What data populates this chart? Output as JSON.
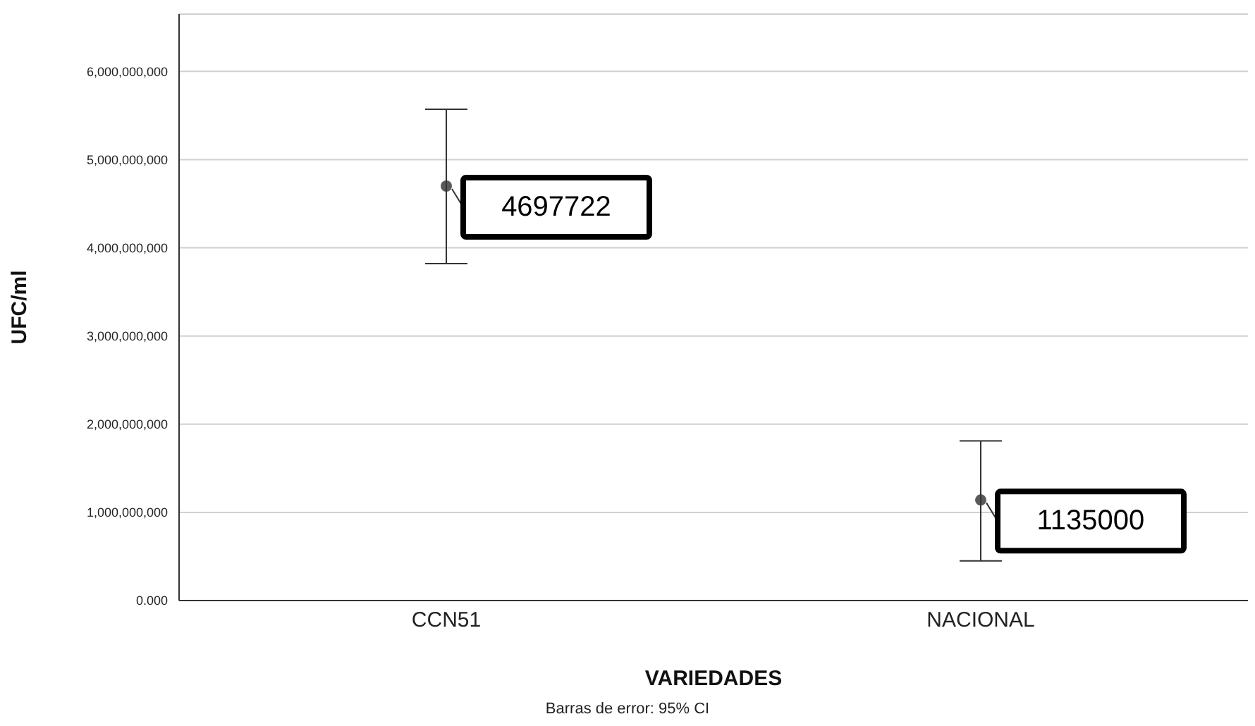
{
  "chart_data": {
    "type": "scatter",
    "xlabel": "VARIEDADES",
    "ylabel": "UFC/ml",
    "categories": [
      "CCN51",
      "NACIONAL"
    ],
    "values": [
      4700000000,
      1140000000
    ],
    "errors": [
      [
        3820000000,
        5570000000
      ],
      [
        450000000,
        1810000000
      ]
    ],
    "color": "#595959",
    "marker": "circle",
    "ylim": [
      0,
      6650000000
    ],
    "yticks": [
      {
        "value": 0,
        "label": "0.000"
      },
      {
        "value": 1000000000,
        "label": "1,000,000,000"
      },
      {
        "value": 2000000000,
        "label": "2,000,000,000"
      },
      {
        "value": 3000000000,
        "label": "3,000,000,000"
      },
      {
        "value": 4000000000,
        "label": "4,000,000,000"
      },
      {
        "value": 5000000000,
        "label": "5,000,000,000"
      },
      {
        "value": 6000000000,
        "label": "6,000,000,000"
      }
    ],
    "grid": "y",
    "annotations": [
      {
        "text": "4697722",
        "x": "CCN51",
        "y": 4700000000
      },
      {
        "text": "1135000",
        "x": "NACIONAL",
        "y": 1140000000
      },
      "Barras de error: 95% CI"
    ]
  }
}
